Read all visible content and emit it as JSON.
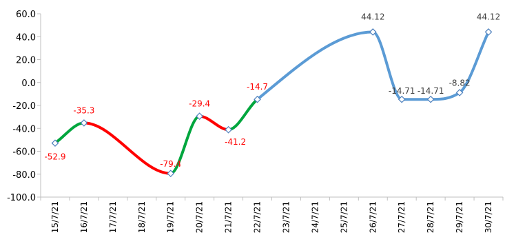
{
  "chart_data": {
    "type": "line",
    "categories": [
      "15/7/21",
      "16/7/21",
      "17/7/21",
      "18/7/21",
      "19/7/21",
      "20/7/21",
      "21/7/21",
      "22/7/21",
      "23/7/21",
      "24/7/21",
      "25/7/21",
      "26/7/21",
      "27/7/21",
      "28/7/21",
      "29/7/21",
      "30/7/21"
    ],
    "points": [
      {
        "category": "15/7/21",
        "value": -52.9,
        "label": "-52.9"
      },
      {
        "category": "16/7/21",
        "value": -35.3,
        "label": "-35.3"
      },
      {
        "category": "19/7/21",
        "value": -79.4,
        "label": "-79.4"
      },
      {
        "category": "20/7/21",
        "value": -29.4,
        "label": "-29.4"
      },
      {
        "category": "21/7/21",
        "value": -41.2,
        "label": "-41.2"
      },
      {
        "category": "22/7/21",
        "value": -14.7,
        "label": "-14.7"
      },
      {
        "category": "26/7/21",
        "value": 44.12,
        "label": "44.12"
      },
      {
        "category": "27/7/21",
        "value": -14.71,
        "label": "-14.71"
      },
      {
        "category": "28/7/21",
        "value": -14.71,
        "label": "-14.71"
      },
      {
        "category": "29/7/21",
        "value": -8.82,
        "label": "-8.82"
      },
      {
        "category": "30/7/21",
        "value": 44.12,
        "label": "44.12"
      }
    ],
    "y_ticks": [
      "60.0",
      "40.0",
      "20.0",
      "0.0",
      "-20.0",
      "-40.0",
      "-60.0",
      "-80.0",
      "-100.0"
    ],
    "ylim": [
      -100,
      60
    ],
    "grid": false,
    "legend": "none",
    "colors": {
      "increase": "#00A63E",
      "decrease": "#FF0000",
      "recent": "#5B9BD5",
      "label_red": "#FF0000",
      "label_dark": "#404040",
      "axis": "#BFBFBF"
    }
  }
}
